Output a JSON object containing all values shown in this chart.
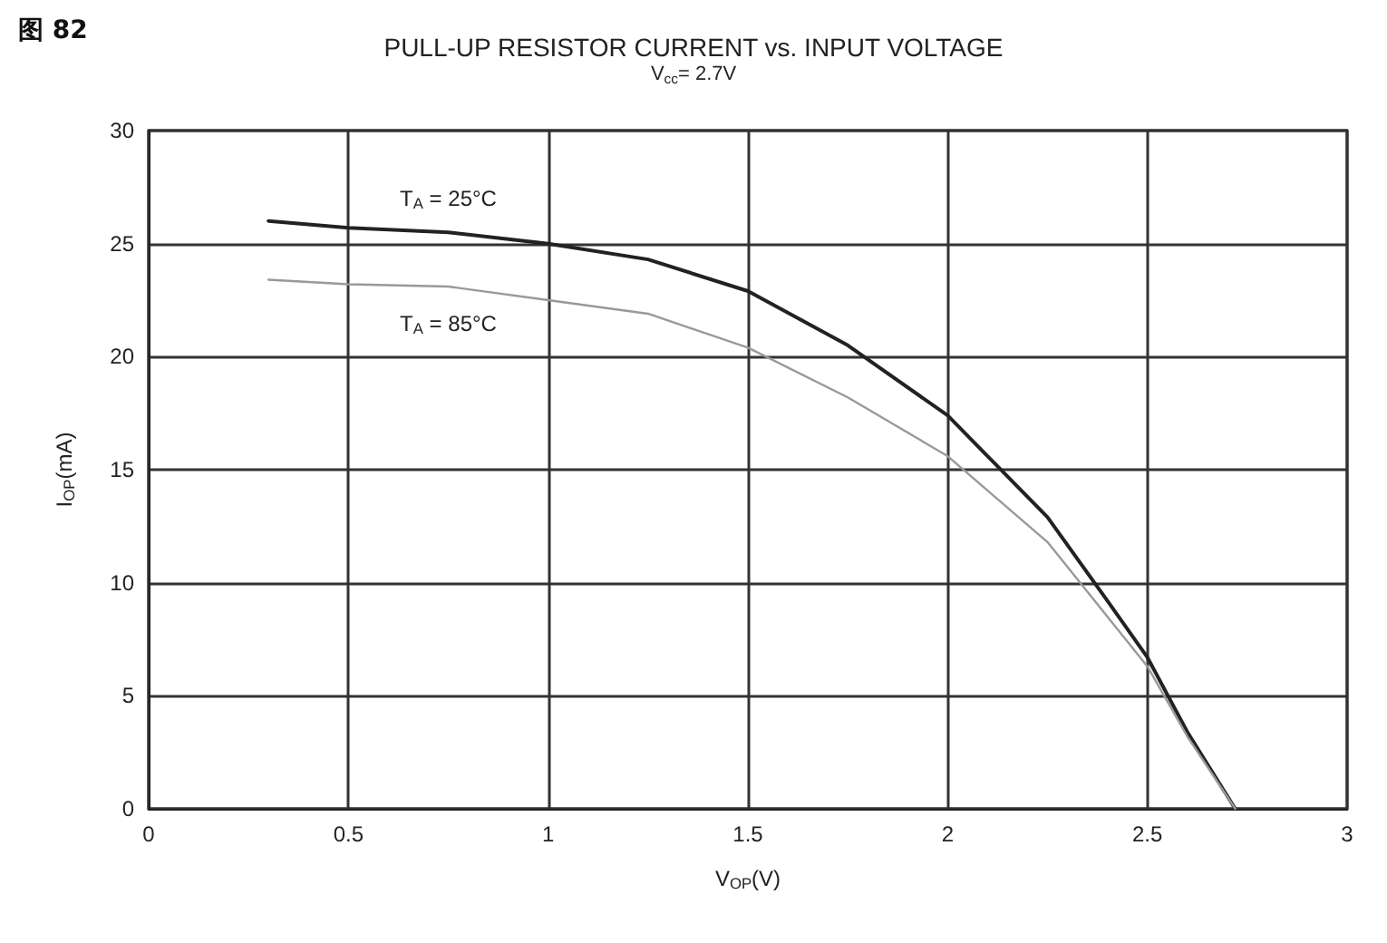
{
  "chart_data": {
    "type": "line",
    "title": "PULL-UP RESISTOR CURRENT vs. INPUT VOLTAGE",
    "subtitle": "V$_{cc}$= 2.7V",
    "xlabel": "V$_{OP}$(V)",
    "ylabel": "I$_{OP}$(mA)",
    "annotations": [
      "图 82"
    ],
    "xlim": [
      0,
      3
    ],
    "xticks": [
      0,
      0.5,
      1,
      1.5,
      2,
      2.5,
      3
    ],
    "ylim": [
      0,
      30
    ],
    "yticks": [
      0,
      5,
      10,
      15,
      20,
      25,
      30
    ],
    "grid": true,
    "legend": false,
    "marker": "none",
    "line_style": "solid",
    "series": [
      {
        "name": "T$_{A}$ = 25°C",
        "color": "#222222",
        "x": [
          0.3,
          0.5,
          0.75,
          1,
          1.25,
          1.5,
          1.75,
          2,
          2.1,
          2.25,
          2.4,
          2.5,
          2.6,
          2.72
        ],
        "values": [
          26,
          25.7,
          25.5,
          25,
          24.3,
          22.9,
          20.5,
          17.4,
          15.6,
          12.9,
          9.2,
          6.7,
          3.4,
          0
        ]
      },
      {
        "name": "T$_{A}$ = 85°C",
        "color": "#999999",
        "x": [
          0.3,
          0.5,
          0.75,
          1,
          1.25,
          1.5,
          1.75,
          2,
          2.25,
          2.5,
          2.6,
          2.72
        ],
        "values": [
          23.4,
          23.2,
          23.1,
          22.5,
          21.9,
          20.4,
          18.2,
          15.6,
          11.8,
          6.3,
          3.2,
          0
        ]
      }
    ]
  }
}
